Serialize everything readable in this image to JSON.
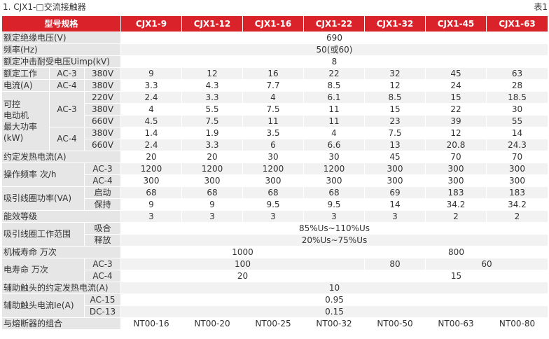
{
  "caption": "1. CJX1-□交流接触器",
  "table_no": "表1",
  "header": {
    "model_spec": "型号规格",
    "models": [
      "CJX1-9",
      "CJX1-12",
      "CJX1-16",
      "CJX1-22",
      "CJX1-32",
      "CJX1-45",
      "CJX1-63"
    ]
  },
  "rows": {
    "insulation_voltage": {
      "label": "额定绝缘电压(V)",
      "value": "690"
    },
    "frequency": {
      "label": "频率(Hz)",
      "value": "50(或60)"
    },
    "impulse_voltage": {
      "label": "额定冲击耐受电压Uimp(kV)",
      "value": "8"
    },
    "rated_current": {
      "label_line1": "额定工作",
      "label_line2": "电流(A)",
      "ac3": "AC-3",
      "ac4": "AC-4",
      "v380": "380V",
      "ac3_values": [
        "9",
        "12",
        "16",
        "22",
        "32",
        "45",
        "63"
      ],
      "ac4_values": [
        "3.3",
        "4.3",
        "7.7",
        "8.5",
        "12",
        "24",
        "28"
      ]
    },
    "motor_power": {
      "label_lines": [
        "可控",
        "电动机",
        "最大功率",
        "(kW)"
      ],
      "ac3": "AC-3",
      "ac4": "AC-4",
      "v220": "220V",
      "v380": "380V",
      "v660": "660V",
      "ac3_220": [
        "2.4",
        "3.3",
        "4",
        "6.1",
        "8.5",
        "15",
        "18.5"
      ],
      "ac3_380": [
        "4",
        "5.5",
        "7.5",
        "11",
        "15",
        "22",
        "30"
      ],
      "ac3_660": [
        "4.5",
        "7.5",
        "11",
        "11",
        "23",
        "39",
        "55"
      ],
      "ac4_380": [
        "1.4",
        "1.9",
        "3.5",
        "4",
        "7.5",
        "12",
        "14"
      ],
      "ac4_660": [
        "2.4",
        "3.3",
        "6",
        "6.6",
        "13",
        "20.8",
        "24.3"
      ]
    },
    "thermal_current": {
      "label": "约定发热电流(A)",
      "values": [
        "20",
        "20",
        "30",
        "30",
        "45",
        "70",
        "70"
      ]
    },
    "operating_frequency": {
      "label": "操作频率 次/h",
      "ac3": "AC-3",
      "ac4": "AC-4",
      "ac3_values": [
        "1200",
        "1200",
        "1200",
        "1200",
        "300",
        "300",
        "300"
      ],
      "ac4_values": [
        "300",
        "300",
        "300",
        "300",
        "300",
        "300",
        "300"
      ]
    },
    "coil_power": {
      "label": "吸引线圈功率(VA)",
      "start": "启动",
      "hold": "保持",
      "start_values": [
        "68",
        "68",
        "68",
        "68",
        "69",
        "183",
        "183"
      ],
      "hold_values": [
        "9",
        "9",
        "9.5",
        "9.5",
        "14",
        "34.2",
        "34.2"
      ]
    },
    "efficiency": {
      "label": "能效等级",
      "values": [
        "3",
        "3",
        "3",
        "3",
        "3",
        "2",
        "2"
      ]
    },
    "coil_range": {
      "label": "吸引线圈工作范围",
      "pickup": "吸合",
      "release": "释放",
      "pickup_value": "85%Us~110%Us",
      "release_value": "20%Us~75%Us"
    },
    "mech_life": {
      "label": "机械寿命 万次",
      "value_a": "1000",
      "value_b": "800"
    },
    "elec_life": {
      "label": "电寿命 万次",
      "ac3": "AC-3",
      "ac4": "AC-4",
      "ac3_a": "100",
      "ac3_b": "80",
      "ac3_c": "60",
      "ac4_a": "20",
      "ac4_b": "15"
    },
    "aux_thermal": {
      "label": "辅助触头的约定发热电流(A)",
      "value": "10"
    },
    "aux_current": {
      "label": "辅助触头电流Ie(A)",
      "ac15": "AC-15",
      "dc13": "DC-13",
      "ac15_value": "0.95",
      "dc13_value": "0.15"
    },
    "fuse": {
      "label": "与熔断器的组合",
      "values": [
        "NT00-16",
        "NT00-20",
        "NT00-25",
        "NT00-32",
        "NT00-50",
        "NT00-63",
        "NT00-80"
      ]
    }
  },
  "colors": {
    "header_bg": "#d9222a",
    "label_bg": "#e6e6e6",
    "row_alt_bg": "#f2f2f2"
  }
}
